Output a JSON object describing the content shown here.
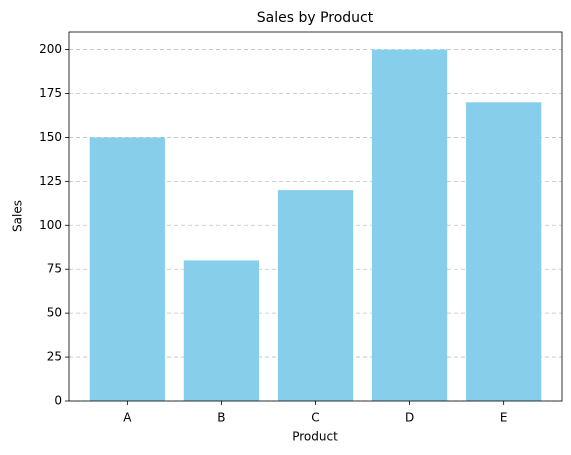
{
  "chart_data": {
    "type": "bar",
    "title": "Sales by Product",
    "x_label": "Product",
    "y_label": "Sales",
    "categories": [
      "A",
      "B",
      "C",
      "D",
      "E"
    ],
    "values": [
      150,
      80,
      120,
      200,
      170
    ],
    "color": "#87ceeb",
    "ylim": [
      0,
      210
    ],
    "yticks": [
      0,
      25,
      50,
      75,
      100,
      125,
      150,
      175,
      200
    ],
    "grid": true
  }
}
